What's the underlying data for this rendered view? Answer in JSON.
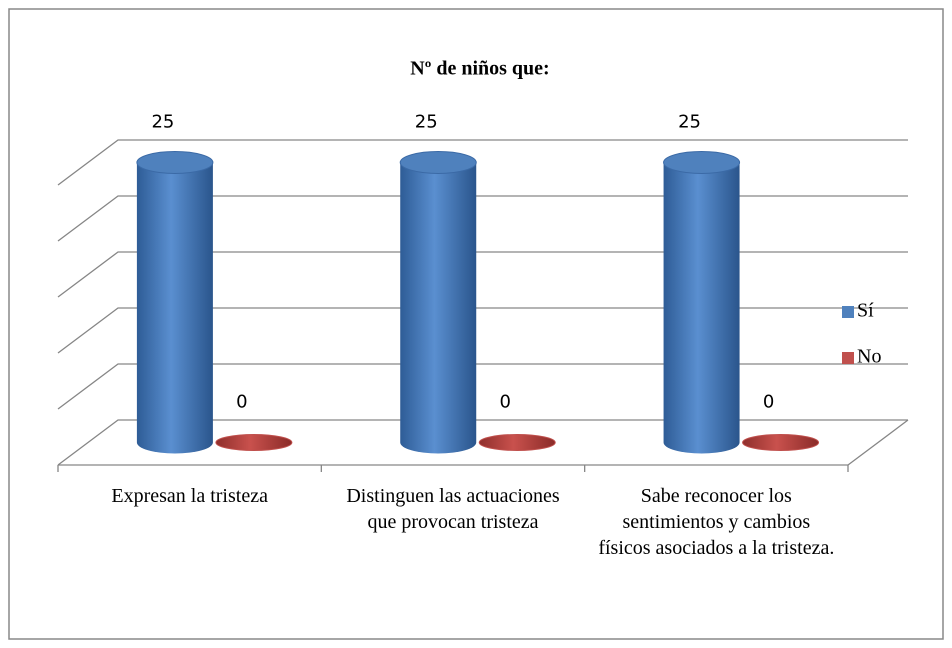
{
  "chart_data": {
    "type": "bar3d",
    "title": "Nº de niños que:",
    "categories": [
      "Expresan la tristeza",
      "Distinguen las actuaciones que provocan tristeza",
      "Sabe reconocer los sentimientos y cambios físicos asociados a la tristeza."
    ],
    "series": [
      {
        "name": "Sí",
        "color": "#4f81bd",
        "values": [
          25,
          25,
          25
        ]
      },
      {
        "name": "No",
        "color": "#c0504d",
        "values": [
          0,
          0,
          0
        ]
      }
    ],
    "ylim": [
      0,
      25
    ],
    "yticks": [
      0,
      5,
      10,
      15,
      20,
      25
    ],
    "grid": true,
    "legend": "right"
  }
}
